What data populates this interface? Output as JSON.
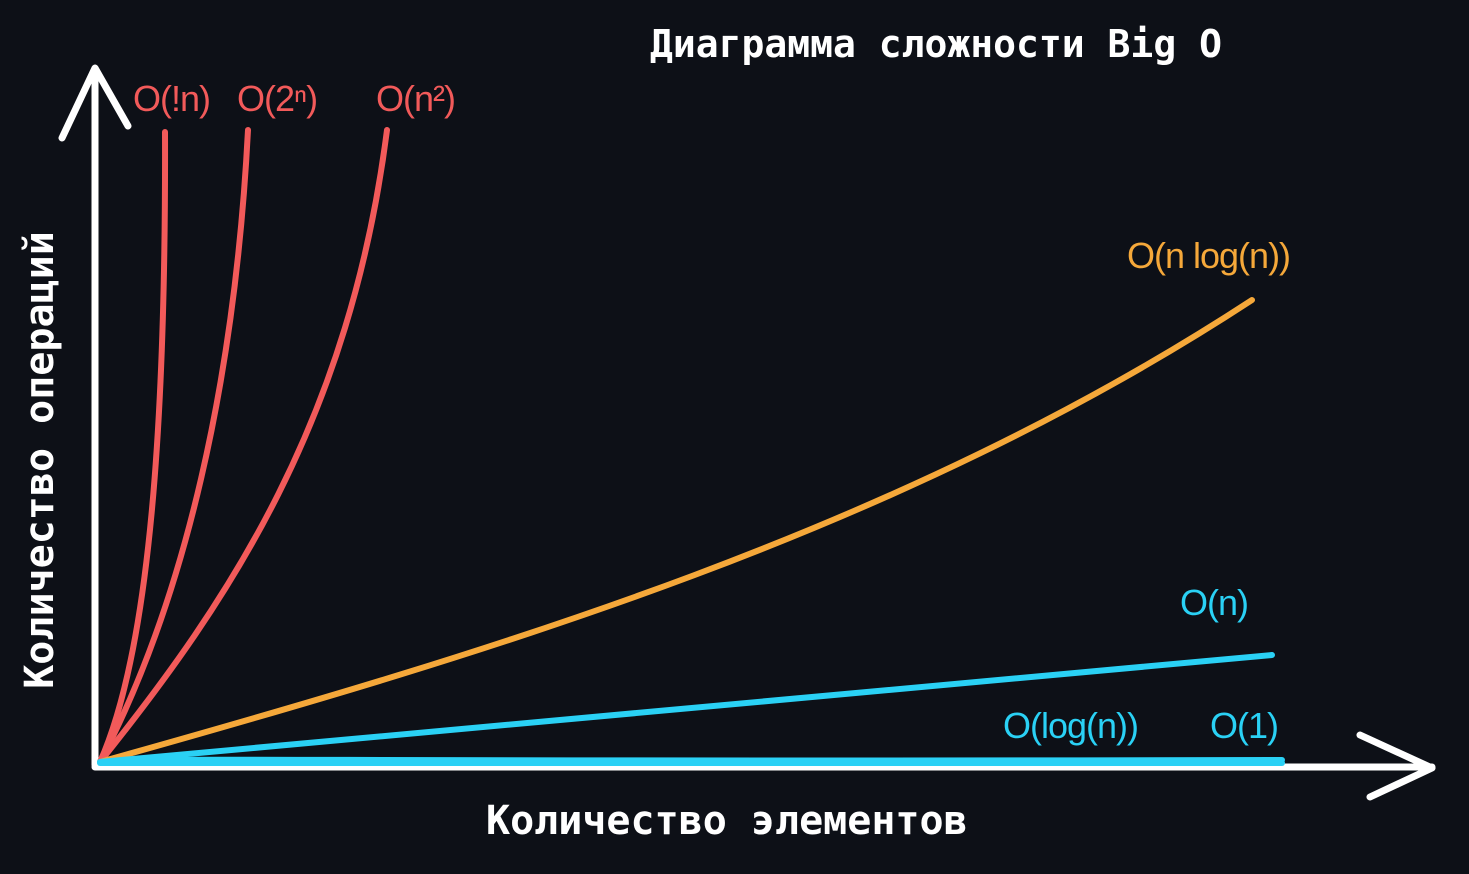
{
  "title": "Диаграмма сложности Big O",
  "chart_data": {
    "type": "line",
    "title": "Диаграмма сложности Big O",
    "xlabel": "Количество элементов",
    "ylabel": "Количество операций",
    "grid": false,
    "legend": "inline-labels",
    "series": [
      {
        "key": "fact",
        "name": "O(!n)",
        "color": "#f25a5a"
      },
      {
        "key": "exp",
        "name": "O(2ⁿ)",
        "color": "#f25a5a"
      },
      {
        "key": "sq",
        "name": "O(n²)",
        "color": "#f25a5a"
      },
      {
        "key": "nlogn",
        "name": "O(n log(n))",
        "color": "#f5a83a"
      },
      {
        "key": "lin",
        "name": "O(n)",
        "color": "#2ad1f5"
      },
      {
        "key": "log",
        "name": "O(log(n))",
        "color": "#2ad1f5"
      },
      {
        "key": "const",
        "name": "O(1)",
        "color": "#2ad1f5"
      }
    ]
  }
}
